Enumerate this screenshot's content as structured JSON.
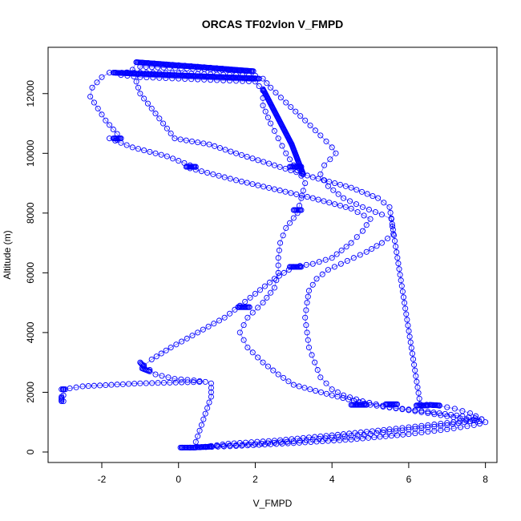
{
  "chart_data": {
    "type": "scatter",
    "title": "ORCAS TF02vlon V_FMPD",
    "xlabel": "V_FMPD",
    "ylabel": "Altitude (m)",
    "xlim": [
      -3.4,
      8.3
    ],
    "ylim": [
      -350,
      13550
    ],
    "xticks": [
      -2,
      0,
      2,
      4,
      6,
      8
    ],
    "yticks": [
      0,
      2000,
      4000,
      6000,
      8000,
      10000,
      12000
    ],
    "grid": false,
    "color": "#0000ff",
    "marker": "open-circle",
    "series": [
      {
        "name": "",
        "points": [
          [
            0.1,
            150
          ],
          [
            0.3,
            150
          ],
          [
            0.5,
            170
          ],
          [
            0.7,
            180
          ],
          [
            1.3,
            280
          ],
          [
            2.5,
            380
          ],
          [
            4.0,
            560
          ],
          [
            5.5,
            760
          ],
          [
            6.5,
            900
          ],
          [
            7.5,
            1050
          ],
          [
            7.9,
            1100
          ],
          [
            7.4,
            1200
          ],
          [
            6.5,
            1350
          ],
          [
            5.5,
            1500
          ],
          [
            4.8,
            1700
          ],
          [
            4.3,
            1900
          ],
          [
            4.0,
            2100
          ],
          [
            3.7,
            2500
          ],
          [
            3.55,
            3000
          ],
          [
            3.4,
            3500
          ],
          [
            3.35,
            4000
          ],
          [
            3.3,
            4500
          ],
          [
            3.35,
            5000
          ],
          [
            3.4,
            5400
          ],
          [
            3.6,
            5800
          ],
          [
            3.9,
            6100
          ],
          [
            4.4,
            6400
          ],
          [
            4.9,
            6700
          ],
          [
            5.3,
            7000
          ],
          [
            5.6,
            7300
          ],
          [
            5.55,
            7800
          ],
          [
            5.3,
            7950
          ],
          [
            4.8,
            8200
          ],
          [
            4.3,
            8500
          ],
          [
            3.9,
            8900
          ],
          [
            3.7,
            9300
          ],
          [
            3.8,
            9600
          ],
          [
            4.1,
            10000
          ],
          [
            4.0,
            10200
          ],
          [
            3.7,
            10600
          ],
          [
            3.3,
            11100
          ],
          [
            2.8,
            11700
          ],
          [
            2.4,
            12200
          ],
          [
            2.2,
            12500
          ],
          [
            2.0,
            12600
          ],
          [
            1.0,
            12640
          ],
          [
            0.0,
            12680
          ],
          [
            -1.0,
            12700
          ],
          [
            -1.8,
            12700
          ],
          [
            -2.0,
            12550
          ],
          [
            -2.25,
            12200
          ],
          [
            -2.3,
            11900
          ],
          [
            -2.1,
            11500
          ],
          [
            -1.9,
            11100
          ],
          [
            -1.7,
            10800
          ],
          [
            -1.5,
            10500
          ],
          [
            -1.6,
            10450
          ],
          [
            -1.8,
            10500
          ],
          [
            -1.2,
            10200
          ],
          [
            -0.3,
            9900
          ],
          [
            0.3,
            9600
          ],
          [
            0.4,
            9550
          ]
        ]
      },
      {
        "name": "",
        "points": [
          [
            0.3,
            9500
          ],
          [
            1.5,
            9100
          ],
          [
            2.5,
            8800
          ],
          [
            3.5,
            8500
          ],
          [
            4.5,
            8150
          ],
          [
            5.0,
            7800
          ],
          [
            4.8,
            7400
          ],
          [
            4.5,
            7000
          ],
          [
            4.0,
            6500
          ],
          [
            3.5,
            6300
          ],
          [
            3.0,
            6200
          ],
          [
            2.5,
            5800
          ],
          [
            2.0,
            5300
          ],
          [
            1.6,
            4900
          ],
          [
            1.2,
            4500
          ],
          [
            0.5,
            4000
          ],
          [
            -0.2,
            3500
          ],
          [
            -0.7,
            3100
          ],
          [
            -0.9,
            2900
          ],
          [
            -0.6,
            2600
          ],
          [
            -0.1,
            2450
          ],
          [
            0.4,
            2400
          ],
          [
            0.7,
            2350
          ],
          [
            -1.0,
            2300
          ],
          [
            -2.5,
            2200
          ],
          [
            -3.0,
            2100
          ],
          [
            -3.0,
            1900
          ],
          [
            -3.0,
            1700
          ]
        ]
      },
      {
        "name": "",
        "points": [
          [
            0.85,
            2300
          ],
          [
            0.85,
            2150
          ],
          [
            0.85,
            2000
          ],
          [
            0.85,
            1850
          ],
          [
            0.4,
            150
          ],
          [
            1.5,
            200
          ],
          [
            3.0,
            300
          ],
          [
            4.5,
            420
          ],
          [
            6.0,
            600
          ],
          [
            7.0,
            760
          ],
          [
            7.7,
            900
          ],
          [
            8.0,
            1000
          ],
          [
            7.0,
            1200
          ],
          [
            6.0,
            1400
          ],
          [
            5.0,
            1580
          ],
          [
            4.0,
            1900
          ],
          [
            3.0,
            2250
          ],
          [
            2.6,
            2600
          ],
          [
            2.2,
            3000
          ],
          [
            1.8,
            3500
          ],
          [
            1.6,
            4000
          ],
          [
            1.8,
            4500
          ],
          [
            2.2,
            5000
          ],
          [
            2.5,
            5500
          ],
          [
            2.6,
            6000
          ],
          [
            2.6,
            6500
          ],
          [
            2.65,
            7000
          ],
          [
            2.8,
            7500
          ],
          [
            3.1,
            8000
          ],
          [
            3.2,
            8500
          ],
          [
            3.3,
            9000
          ],
          [
            3.2,
            9250
          ],
          [
            3.0,
            9600
          ],
          [
            2.8,
            10000
          ],
          [
            2.6,
            10500
          ],
          [
            2.4,
            11000
          ],
          [
            2.2,
            11600
          ],
          [
            2.2,
            12100
          ],
          [
            2.0,
            12400
          ],
          [
            1.0,
            12450
          ],
          [
            0.0,
            12500
          ],
          [
            -1.0,
            12550
          ],
          [
            -1.5,
            12620
          ],
          [
            -1.2,
            12800
          ],
          [
            -1.1,
            13050
          ],
          [
            0.0,
            12950
          ],
          [
            1.0,
            12850
          ],
          [
            1.9,
            12750
          ],
          [
            -1.0,
            12900
          ],
          [
            -1.1,
            12400
          ],
          [
            -1.0,
            12000
          ],
          [
            -0.7,
            11500
          ],
          [
            -0.4,
            11000
          ],
          [
            -0.1,
            10500
          ],
          [
            0.8,
            10300
          ],
          [
            1.5,
            10000
          ],
          [
            2.5,
            9600
          ],
          [
            3.5,
            9200
          ],
          [
            4.5,
            8850
          ],
          [
            5.2,
            8500
          ],
          [
            5.5,
            8200
          ],
          [
            6.3,
            1600
          ],
          [
            6.8,
            1550
          ],
          [
            7.2,
            1450
          ],
          [
            7.6,
            1300
          ],
          [
            7.9,
            1100
          ],
          [
            7.0,
            900
          ],
          [
            6.0,
            750
          ],
          [
            5.0,
            600
          ],
          [
            4.0,
            480
          ],
          [
            3.0,
            360
          ],
          [
            2.0,
            260
          ],
          [
            1.0,
            200
          ],
          [
            0.6,
            170
          ],
          [
            0.3,
            150
          ]
        ]
      }
    ],
    "dense_segments": [
      {
        "from": [
          -1.1,
          13050
        ],
        "to": [
          1.95,
          12750
        ]
      },
      {
        "from": [
          -1.7,
          12700
        ],
        "to": [
          2.1,
          12500
        ]
      },
      {
        "from": [
          2.2,
          12150
        ],
        "to": [
          2.95,
          10300
        ]
      },
      {
        "from": [
          2.95,
          10300
        ],
        "to": [
          3.25,
          9300
        ]
      },
      {
        "from": [
          1.55,
          4850
        ],
        "to": [
          1.85,
          4850
        ]
      },
      {
        "from": [
          2.9,
          6200
        ],
        "to": [
          3.2,
          6200
        ]
      },
      {
        "from": [
          3.0,
          8100
        ],
        "to": [
          3.2,
          8100
        ]
      },
      {
        "from": [
          2.9,
          9550
        ],
        "to": [
          3.2,
          9550
        ]
      },
      {
        "from": [
          4.5,
          1580
        ],
        "to": [
          4.9,
          1580
        ]
      },
      {
        "from": [
          5.4,
          1600
        ],
        "to": [
          5.7,
          1600
        ]
      },
      {
        "from": [
          6.2,
          1560
        ],
        "to": [
          6.5,
          1560
        ]
      },
      {
        "from": [
          6.55,
          1580
        ],
        "to": [
          6.8,
          1560
        ]
      },
      {
        "from": [
          -3.05,
          2100
        ],
        "to": [
          -2.95,
          2100
        ]
      },
      {
        "from": [
          -3.05,
          1850
        ],
        "to": [
          -3.05,
          1700
        ]
      },
      {
        "from": [
          0.05,
          150
        ],
        "to": [
          0.45,
          150
        ]
      },
      {
        "from": [
          0.5,
          160
        ],
        "to": [
          0.85,
          180
        ]
      },
      {
        "from": [
          -0.95,
          2800
        ],
        "to": [
          -0.75,
          2700
        ]
      },
      {
        "from": [
          -1.0,
          3000
        ],
        "to": [
          -0.9,
          2850
        ]
      },
      {
        "from": [
          -1.7,
          10500
        ],
        "to": [
          -1.5,
          10500
        ]
      },
      {
        "from": [
          0.2,
          9550
        ],
        "to": [
          0.45,
          9550
        ]
      }
    ]
  }
}
